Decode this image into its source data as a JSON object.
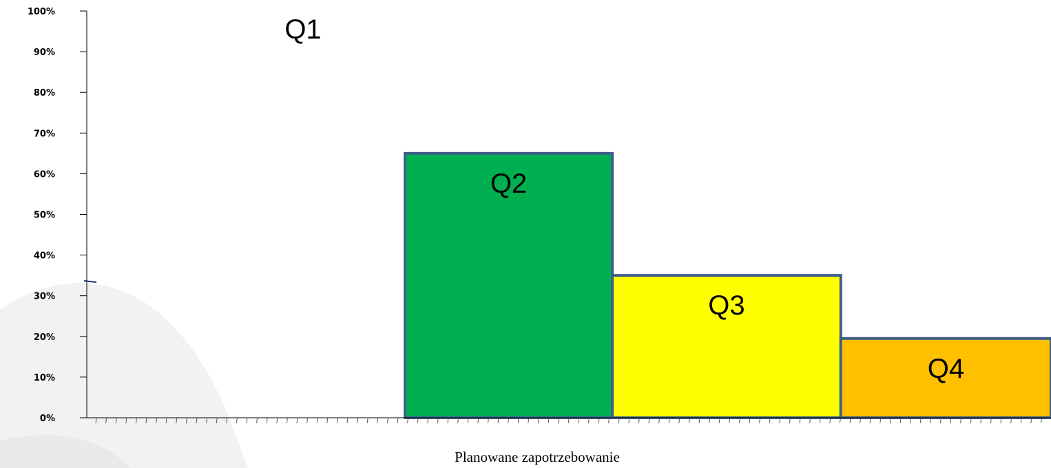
{
  "chart_data": {
    "type": "bar",
    "xlabel": "Planowane zapotrzebowanie",
    "ylabel": "",
    "title": "",
    "ylim": [
      0,
      100
    ],
    "yticks": [
      "0%",
      "10%",
      "20%",
      "30%",
      "40%",
      "50%",
      "60%",
      "70%",
      "80%",
      "90%",
      "100%"
    ],
    "grid": false,
    "legend": "none",
    "marker_value": 33.5,
    "bars": [
      {
        "label": "Q1",
        "value": 0,
        "x_start": 0,
        "x_end": 33,
        "color": "#ffffff"
      },
      {
        "label": "Q2",
        "value": 65,
        "x_start": 33,
        "x_end": 54.5,
        "color": "#00b050"
      },
      {
        "label": "Q3",
        "value": 35,
        "x_start": 54.5,
        "x_end": 78.2,
        "color": "#ffff00"
      },
      {
        "label": "Q4",
        "value": 19.5,
        "x_start": 78.2,
        "x_end": 100,
        "color": "#ffc000"
      }
    ],
    "colors": {
      "bar_outline": "#3f5f8a",
      "axis": "#000000",
      "marker": "#1f2a6e"
    }
  }
}
